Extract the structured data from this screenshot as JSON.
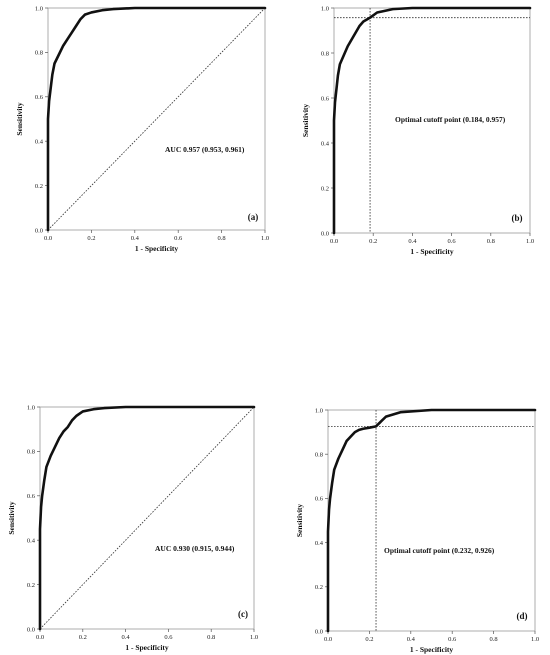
{
  "chart_data": [
    {
      "type": "line",
      "panel_label": "(a)",
      "xlabel": "1 - Specificity",
      "ylabel": "Sensitivity",
      "xlim": [
        0,
        1
      ],
      "ylim": [
        0,
        1
      ],
      "x_ticks": [
        "0.0",
        "0.2",
        "0.4",
        "0.6",
        "0.8",
        "1.0"
      ],
      "y_ticks": [
        "0.0",
        "0.2",
        "0.4",
        "0.6",
        "0.8",
        "1.0"
      ],
      "annotation": "AUC 0.957 (0.953, 0.961)",
      "diagonal_reference": true,
      "roc": {
        "x": [
          0,
          0,
          0.005,
          0.01,
          0.02,
          0.03,
          0.05,
          0.07,
          0.09,
          0.11,
          0.13,
          0.15,
          0.17,
          0.2,
          0.25,
          0.3,
          0.4,
          0.6,
          1.0
        ],
        "y": [
          0,
          0.5,
          0.58,
          0.62,
          0.7,
          0.75,
          0.79,
          0.83,
          0.86,
          0.89,
          0.92,
          0.95,
          0.97,
          0.98,
          0.99,
          0.995,
          1.0,
          1.0,
          1.0
        ]
      },
      "cutoff": null
    },
    {
      "type": "line",
      "panel_label": "(b)",
      "xlabel": "1 - Specificity",
      "ylabel": "Sensitivity",
      "xlim": [
        0,
        1
      ],
      "ylim": [
        0,
        1
      ],
      "x_ticks": [
        "0.0",
        "0.2",
        "0.4",
        "0.6",
        "0.8",
        "1.0"
      ],
      "y_ticks": [
        "0.0",
        "0.2",
        "0.4",
        "0.6",
        "0.8",
        "1.0"
      ],
      "annotation": "Optimal cutoff point (0.184, 0.957)",
      "diagonal_reference": false,
      "roc": {
        "x": [
          0,
          0,
          0.005,
          0.01,
          0.02,
          0.03,
          0.05,
          0.07,
          0.09,
          0.11,
          0.13,
          0.15,
          0.17,
          0.184,
          0.22,
          0.3,
          0.4,
          0.6,
          1.0
        ],
        "y": [
          0,
          0.5,
          0.58,
          0.62,
          0.7,
          0.75,
          0.79,
          0.83,
          0.86,
          0.89,
          0.92,
          0.94,
          0.95,
          0.957,
          0.98,
          0.995,
          1.0,
          1.0,
          1.0
        ]
      },
      "cutoff": {
        "x": 0.184,
        "y": 0.957
      }
    },
    {
      "type": "line",
      "panel_label": "(c)",
      "xlabel": "1 - Specificity",
      "ylabel": "Sensitivity",
      "xlim": [
        0,
        1
      ],
      "ylim": [
        0,
        1
      ],
      "x_ticks": [
        "0.0",
        "0.2",
        "0.4",
        "0.6",
        "0.8",
        "1.0"
      ],
      "y_ticks": [
        "0.0",
        "0.2",
        "0.4",
        "0.6",
        "0.8",
        "1.0"
      ],
      "annotation": "AUC 0.930 (0.915, 0.944)",
      "diagonal_reference": true,
      "roc": {
        "x": [
          0,
          0,
          0.005,
          0.01,
          0.02,
          0.03,
          0.05,
          0.07,
          0.09,
          0.11,
          0.13,
          0.15,
          0.17,
          0.2,
          0.25,
          0.3,
          0.4,
          0.6,
          1.0
        ],
        "y": [
          0,
          0.45,
          0.55,
          0.6,
          0.67,
          0.73,
          0.78,
          0.82,
          0.86,
          0.89,
          0.91,
          0.94,
          0.96,
          0.98,
          0.99,
          0.995,
          1.0,
          1.0,
          1.0
        ]
      },
      "cutoff": null
    },
    {
      "type": "line",
      "panel_label": "(d)",
      "xlabel": "1 - Specificity",
      "ylabel": "Sensitivity",
      "xlim": [
        0,
        1
      ],
      "ylim": [
        0,
        1
      ],
      "x_ticks": [
        "0.0",
        "0.2",
        "0.4",
        "0.6",
        "0.8",
        "1.0"
      ],
      "y_ticks": [
        "0.0",
        "0.2",
        "0.4",
        "0.6",
        "0.8",
        "1.0"
      ],
      "annotation": "Optimal cutoff point (0.232, 0.926)",
      "diagonal_reference": false,
      "roc": {
        "x": [
          0,
          0,
          0.005,
          0.01,
          0.02,
          0.03,
          0.05,
          0.07,
          0.09,
          0.11,
          0.13,
          0.15,
          0.17,
          0.2,
          0.232,
          0.28,
          0.35,
          0.5,
          1.0
        ],
        "y": [
          0,
          0.45,
          0.55,
          0.6,
          0.67,
          0.73,
          0.78,
          0.82,
          0.86,
          0.88,
          0.9,
          0.91,
          0.915,
          0.92,
          0.926,
          0.97,
          0.99,
          1.0,
          1.0
        ]
      },
      "cutoff": {
        "x": 0.232,
        "y": 0.926
      }
    }
  ]
}
